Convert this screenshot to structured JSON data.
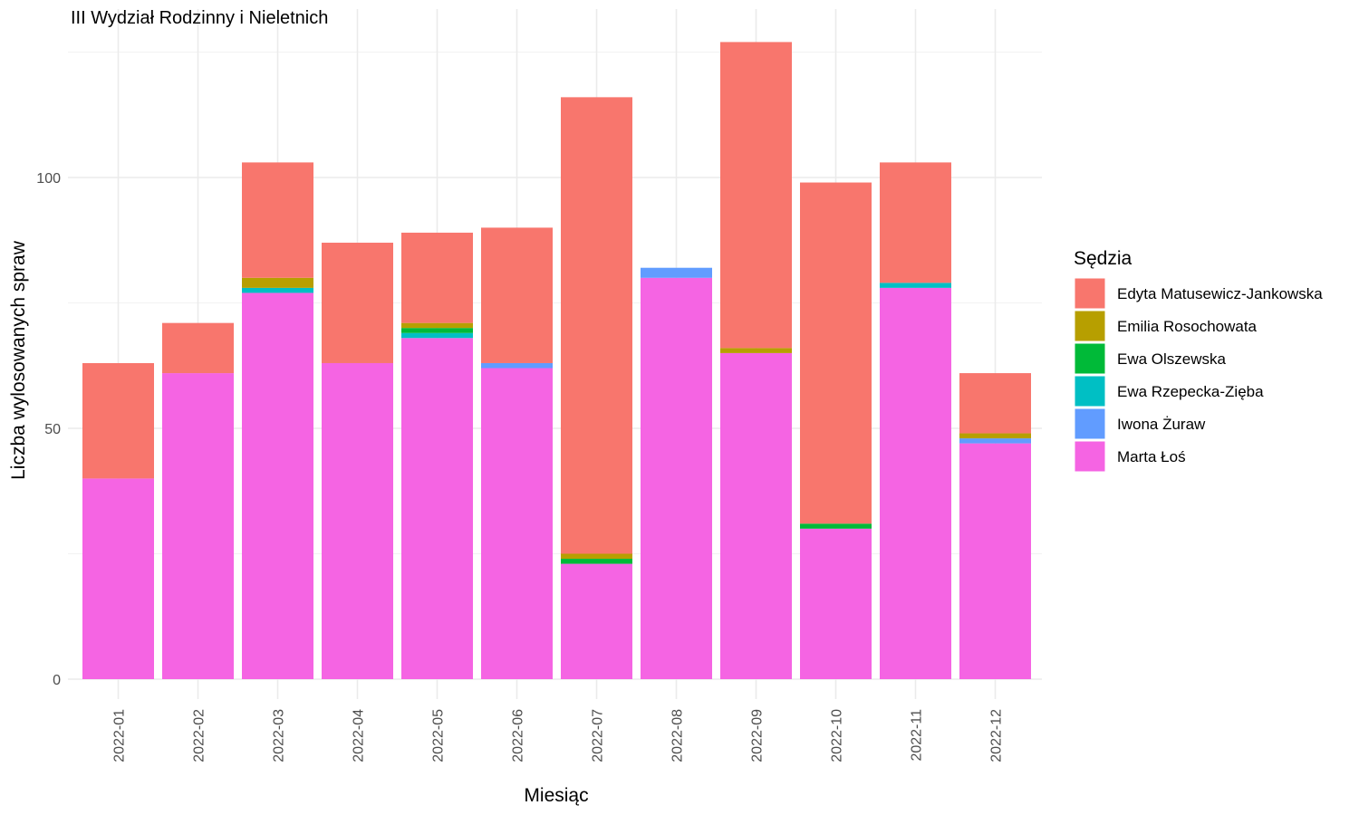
{
  "chart_data": {
    "type": "bar",
    "stacked": true,
    "title": "III Wydział Rodzinny i Nieletnich",
    "xlabel": "Miesiąc",
    "ylabel": "Liczba wylosowanych spraw",
    "ylim": [
      0,
      130
    ],
    "yticks": [
      0,
      50,
      100
    ],
    "grid": true,
    "legend_title": "Sędzia",
    "legend_position": "right",
    "categories": [
      "2022-01",
      "2022-02",
      "2022-03",
      "2022-04",
      "2022-05",
      "2022-06",
      "2022-07",
      "2022-08",
      "2022-09",
      "2022-10",
      "2022-11",
      "2022-12"
    ],
    "series": [
      {
        "name": "Marta Łoś",
        "color": "#F564E3",
        "values": [
          40,
          61,
          77,
          63,
          68,
          62,
          23,
          80,
          65,
          30,
          78,
          47
        ]
      },
      {
        "name": "Iwona Żuraw",
        "color": "#619CFF",
        "values": [
          0,
          0,
          0,
          0,
          0,
          1,
          0,
          2,
          0,
          0,
          0,
          1
        ]
      },
      {
        "name": "Ewa Rzepecka-Zięba",
        "color": "#00BFC4",
        "values": [
          0,
          0,
          1,
          0,
          1,
          0,
          0,
          0,
          0,
          0,
          1,
          0
        ]
      },
      {
        "name": "Ewa Olszewska",
        "color": "#00BA38",
        "values": [
          0,
          0,
          0,
          0,
          1,
          0,
          1,
          0,
          0,
          1,
          0,
          0
        ]
      },
      {
        "name": "Emilia Rosochowata",
        "color": "#B79F00",
        "values": [
          0,
          0,
          2,
          0,
          1,
          0,
          1,
          0,
          1,
          0,
          0,
          1
        ]
      },
      {
        "name": "Edyta Matusewicz-Jankowska",
        "color": "#F8766D",
        "values": [
          23,
          10,
          23,
          24,
          18,
          27,
          91,
          0,
          61,
          68,
          24,
          12
        ]
      }
    ],
    "legend_order": [
      "Edyta Matusewicz-Jankowska",
      "Emilia Rosochowata",
      "Ewa Olszewska",
      "Ewa Rzepecka-Zięba",
      "Iwona Żuraw",
      "Marta Łoś"
    ]
  }
}
